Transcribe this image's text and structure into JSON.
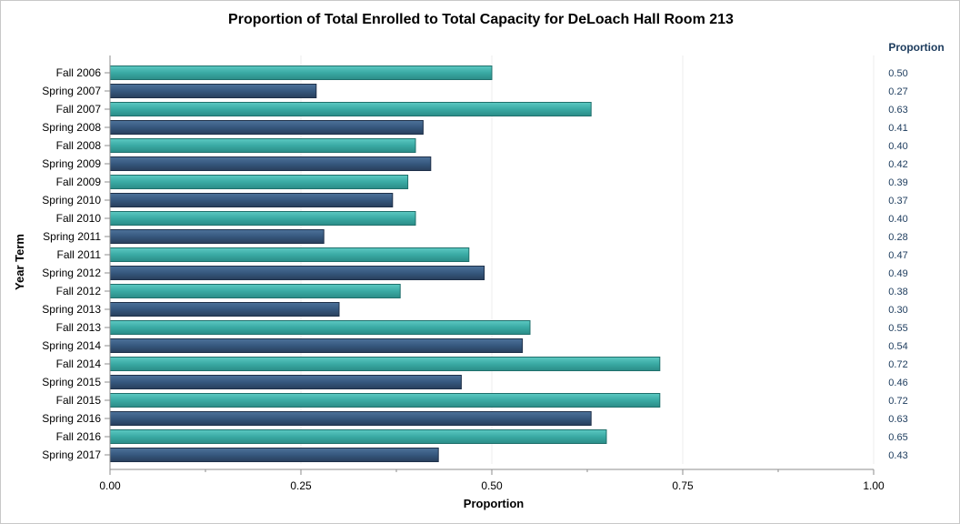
{
  "chart_data": {
    "type": "bar",
    "orientation": "horizontal",
    "title": "Proportion of Total Enrolled to Total Capacity for DeLoach Hall Room 213",
    "xlabel": "Proportion",
    "ylabel": "Year Term",
    "value_column_header": "Proportion",
    "xlim": [
      0,
      1
    ],
    "xticks": [
      "0.00",
      "0.25",
      "0.50",
      "0.75",
      "1.00"
    ],
    "grid": true,
    "categories": [
      "Fall 2006",
      "Spring 2007",
      "Fall 2007",
      "Spring 2008",
      "Fall 2008",
      "Spring 2009",
      "Fall 2009",
      "Spring 2010",
      "Fall 2010",
      "Spring 2011",
      "Fall 2011",
      "Spring 2012",
      "Fall 2012",
      "Spring 2013",
      "Fall 2013",
      "Spring 2014",
      "Fall 2014",
      "Spring 2015",
      "Fall 2015",
      "Spring 2016",
      "Fall 2016",
      "Spring 2017"
    ],
    "values": [
      0.5,
      0.27,
      0.63,
      0.41,
      0.4,
      0.42,
      0.39,
      0.37,
      0.4,
      0.28,
      0.47,
      0.49,
      0.38,
      0.3,
      0.55,
      0.54,
      0.72,
      0.46,
      0.72,
      0.63,
      0.65,
      0.43
    ],
    "value_labels": [
      "0.50",
      "0.27",
      "0.63",
      "0.41",
      "0.40",
      "0.42",
      "0.39",
      "0.37",
      "0.40",
      "0.28",
      "0.47",
      "0.49",
      "0.38",
      "0.30",
      "0.55",
      "0.54",
      "0.72",
      "0.46",
      "0.72",
      "0.63",
      "0.65",
      "0.43"
    ],
    "colors": {
      "fall": "#3aaaa4",
      "spring": "#36587e",
      "value_text": "#1b3a5c",
      "grid": "#ececec",
      "axis": "#8c8c8c"
    }
  }
}
